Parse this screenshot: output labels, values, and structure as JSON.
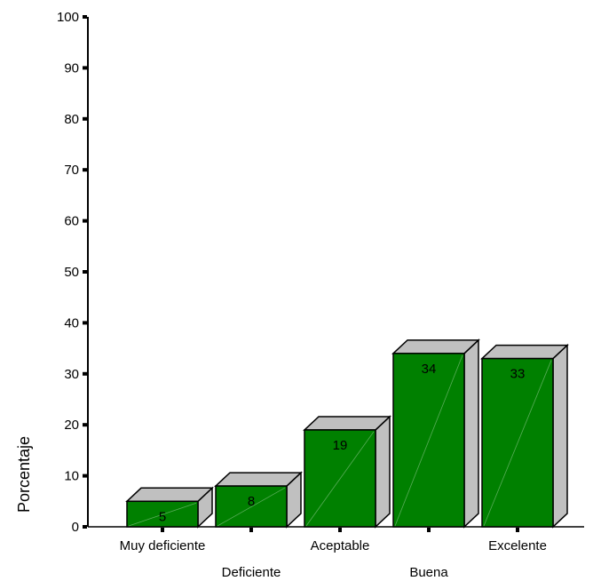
{
  "chart_data": {
    "type": "bar",
    "style": "3d",
    "categories": [
      "Muy deficiente",
      "Deficiente",
      "Aceptable",
      "Buena",
      "Excelente"
    ],
    "values": [
      5,
      8,
      19,
      34,
      33
    ],
    "data_labels": [
      "5",
      "8",
      "19",
      "34",
      "33"
    ],
    "title": "",
    "xlabel": "",
    "ylabel": "Porcentaje",
    "ylim": [
      0,
      100
    ],
    "yticks": [
      "0",
      "10",
      "20",
      "30",
      "40",
      "50",
      "60",
      "70",
      "80",
      "90",
      "100"
    ],
    "grid": false,
    "legend": "none",
    "colors": {
      "bar_front": "#008000",
      "bar_top": "#c0c0c0",
      "bar_side": "#c0c0c0",
      "outline": "#000000"
    }
  }
}
